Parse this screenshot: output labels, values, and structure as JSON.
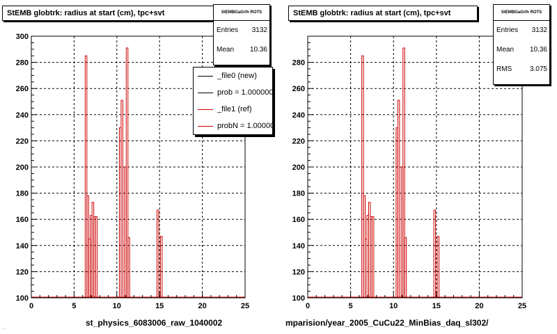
{
  "colors": {
    "ref": "#cc0000",
    "new": "#000000",
    "frame": "#000000"
  },
  "panels": [
    {
      "title": "StEMB globtrk: radius at start (cm), tpc+svt",
      "stats": {
        "name": "StEMBGaGrth ROTS",
        "rows": [
          {
            "label": "Entries",
            "value": "3132"
          },
          {
            "label": "Mean",
            "value": "10.36"
          }
        ]
      },
      "caption": "st_physics_6083006_raw_1040002",
      "legend": [
        {
          "label": "_file0 (new)"
        },
        {
          "label": "prob = 1.000000"
        },
        {
          "label": "_file1 (ref)"
        },
        {
          "label": "probN = 1.000000"
        }
      ]
    },
    {
      "title": "StEMB globtrk: radius at start (cm), tpc+svt",
      "stats": {
        "name": "StEMBGaGrth ROTS",
        "rows": [
          {
            "label": "Entries",
            "value": "3132"
          },
          {
            "label": "Mean",
            "value": "10.36"
          },
          {
            "label": "RMS",
            "value": "3.075"
          }
        ]
      },
      "caption": "mparision/year_2005_CuCu22_MinBias_daq_sl302/"
    }
  ],
  "footer_text": "...",
  "chart_data": [
    {
      "type": "histogram",
      "title": "StEMB globtrk: radius at start (cm), tpc+svt",
      "xlim": [
        0,
        25
      ],
      "ylim": [
        100,
        300
      ],
      "xticks": [
        0,
        5,
        10,
        15,
        20,
        25
      ],
      "yticks": [
        100,
        120,
        140,
        160,
        180,
        200,
        220,
        240,
        260,
        280,
        300
      ],
      "grid": true,
      "series": [
        {
          "name": "_file1 (ref)",
          "color": "#cc0000",
          "bins": [
            [
              0,
              6.3,
              100
            ],
            [
              6.3,
              6.5,
              285
            ],
            [
              6.5,
              6.7,
              178
            ],
            [
              6.7,
              6.9,
              145
            ],
            [
              6.9,
              7.1,
              163
            ],
            [
              7.1,
              7.3,
              173
            ],
            [
              7.3,
              7.5,
              162
            ],
            [
              7.5,
              7.7,
              162
            ],
            [
              7.7,
              10.3,
              100
            ],
            [
              10.3,
              10.5,
              230
            ],
            [
              10.5,
              10.7,
              251
            ],
            [
              10.7,
              10.9,
              100
            ],
            [
              10.9,
              11.1,
              200
            ],
            [
              11.1,
              11.3,
              291
            ],
            [
              11.3,
              11.5,
              146
            ],
            [
              11.5,
              14.7,
              100
            ],
            [
              14.7,
              14.9,
              167
            ],
            [
              14.9,
              15.1,
              100
            ],
            [
              15.1,
              15.3,
              147
            ],
            [
              15.3,
              25,
              100
            ]
          ]
        }
      ]
    },
    {
      "type": "histogram",
      "title": "StEMB globtrk: radius at start (cm), tpc+svt",
      "xlim": [
        0,
        25
      ],
      "ylim": [
        100,
        300
      ],
      "xticks": [
        0,
        5,
        10,
        15,
        20,
        25
      ],
      "yticks": [
        100,
        120,
        140,
        160,
        180,
        200,
        220,
        240,
        260,
        280
      ],
      "grid": true,
      "series": [
        {
          "name": "_file1 (ref)",
          "color": "#cc0000",
          "bins": [
            [
              0,
              6.3,
              100
            ],
            [
              6.3,
              6.5,
              285
            ],
            [
              6.5,
              6.7,
              178
            ],
            [
              6.7,
              6.9,
              145
            ],
            [
              6.9,
              7.1,
              163
            ],
            [
              7.1,
              7.3,
              173
            ],
            [
              7.3,
              7.5,
              162
            ],
            [
              7.5,
              7.7,
              162
            ],
            [
              7.7,
              10.3,
              100
            ],
            [
              10.3,
              10.5,
              230
            ],
            [
              10.5,
              10.7,
              251
            ],
            [
              10.7,
              10.9,
              100
            ],
            [
              10.9,
              11.1,
              200
            ],
            [
              11.1,
              11.3,
              291
            ],
            [
              11.3,
              11.5,
              146
            ],
            [
              11.5,
              14.7,
              100
            ],
            [
              14.7,
              14.9,
              167
            ],
            [
              14.9,
              15.1,
              100
            ],
            [
              15.1,
              15.3,
              147
            ],
            [
              15.3,
              25,
              100
            ]
          ]
        }
      ]
    }
  ]
}
